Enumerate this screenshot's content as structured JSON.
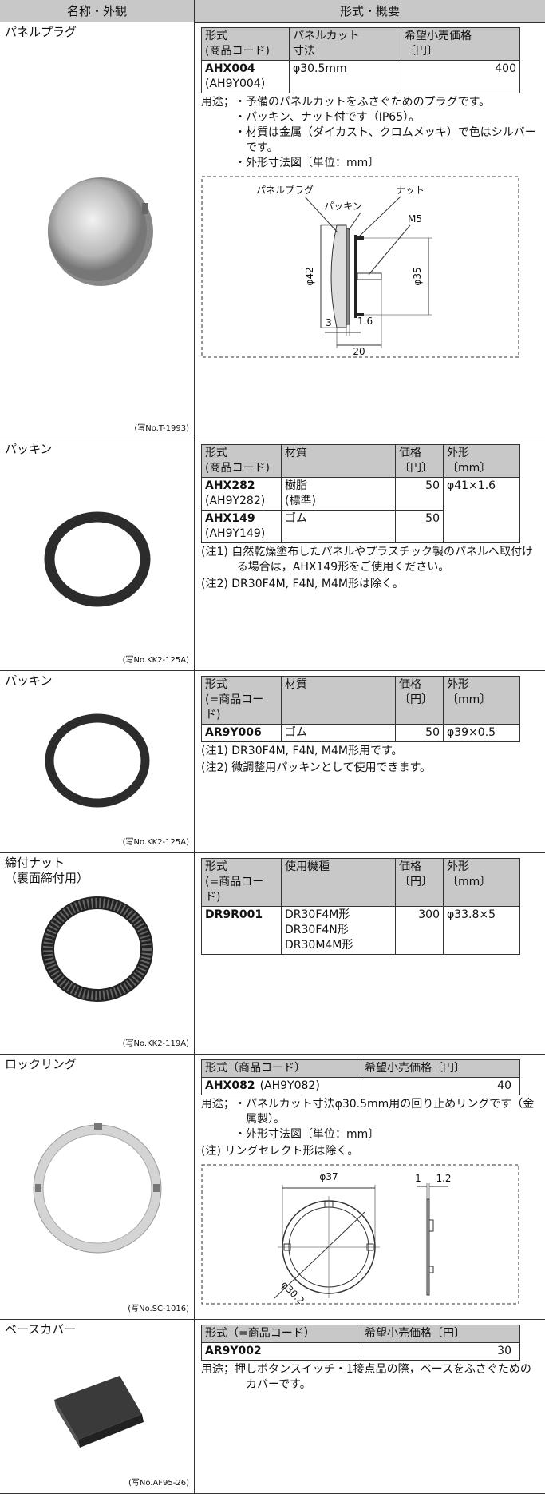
{
  "header": {
    "name_col": "名称・外観",
    "spec_col": "形式・概要"
  },
  "items": [
    {
      "name": [
        "パネルプラグ"
      ],
      "photo_code": "(写No.T-1993)",
      "table": {
        "headers": [
          [
            "形式",
            "(商品コード)"
          ],
          [
            "パネルカット",
            "寸法"
          ],
          [
            "希望小売価格",
            "〔円〕"
          ]
        ],
        "rows": [
          [
            [
              "AHX004",
              "(AH9Y004)"
            ],
            [
              "φ30.5mm"
            ],
            [
              "400"
            ]
          ]
        ]
      },
      "usage_label": "用途；",
      "usage": [
        "・予備のパネルカットをふさぐためのプラグです。",
        "・パッキン、ナット付です（IP65）。",
        "・材質は金属（ダイカスト、クロムメッキ）で色はシルバーです。",
        "・外形寸法図〔単位：mm〕"
      ],
      "diagram_labels": [
        "パネルプラグ",
        "パッキン",
        "ナット",
        "M5",
        "φ42",
        "φ35",
        "3",
        "1.6",
        "20"
      ]
    },
    {
      "name": [
        "パッキン"
      ],
      "photo_code": "(写No.KK2-125A)",
      "table": {
        "headers": [
          [
            "形式",
            "(商品コード)"
          ],
          [
            "材質"
          ],
          [
            "価格",
            "〔円〕"
          ],
          [
            "外形",
            "〔mm〕"
          ]
        ],
        "rows": [
          [
            [
              "AHX282",
              "(AH9Y282)"
            ],
            [
              "樹脂",
              "(標準)"
            ],
            [
              "50"
            ],
            [
              "φ41×1.6"
            ]
          ],
          [
            [
              "AHX149",
              "(AH9Y149)"
            ],
            [
              "ゴム"
            ],
            [
              "50"
            ]
          ]
        ]
      },
      "notes": [
        "(注1) 自然乾燥塗布したパネルやプラスチック製のパネルへ取付ける場合は，AHX149形をご使用ください。",
        "(注2) DR30F4M, F4N, M4M形は除く。"
      ]
    },
    {
      "name": [
        "パッキン"
      ],
      "photo_code": "(写No.KK2-125A)",
      "table": {
        "headers": [
          [
            "形式",
            "(=商品コード)"
          ],
          [
            "材質"
          ],
          [
            "価格",
            "〔円〕"
          ],
          [
            "外形",
            "〔mm〕"
          ]
        ],
        "rows": [
          [
            [
              "AR9Y006"
            ],
            [
              "ゴム"
            ],
            [
              "50"
            ],
            [
              "φ39×0.5"
            ]
          ]
        ]
      },
      "notes": [
        "(注1) DR30F4M, F4N, M4M形用です。",
        "(注2) 微調整用パッキンとして使用できます。"
      ]
    },
    {
      "name": [
        "締付ナット",
        "（裏面締付用）"
      ],
      "photo_code": "(写No.KK2-119A)",
      "table": {
        "headers": [
          [
            "形式",
            "(=商品コード)"
          ],
          [
            "使用機種"
          ],
          [
            "価格",
            "〔円〕"
          ],
          [
            "外形",
            "〔mm〕"
          ]
        ],
        "rows": [
          [
            [
              "DR9R001"
            ],
            [
              "DR30F4M形",
              "DR30F4N形",
              "DR30M4M形"
            ],
            [
              "300"
            ],
            [
              "φ33.8×5"
            ]
          ]
        ]
      }
    },
    {
      "name": [
        "ロックリング"
      ],
      "photo_code": "(写No.SC-1016)",
      "table": {
        "headers": [
          [
            "形式（商品コード）"
          ],
          [
            "希望小売価格〔円〕"
          ]
        ],
        "rows": [
          [
            [
              "AHX082",
              "(AH9Y082)"
            ],
            [
              "40"
            ]
          ]
        ]
      },
      "usage_label": "用途；",
      "usage": [
        "・パネルカット寸法φ30.5mm用の回り止めリングです（金属製）。",
        "・外形寸法図〔単位：mm〕"
      ],
      "notes": [
        "(注) リングセレクト形は除く。"
      ],
      "diagram_labels": [
        "φ37",
        "1",
        "1.2",
        "φ30.2"
      ]
    },
    {
      "name": [
        "ベースカバー"
      ],
      "photo_code": "(写No.AF95-26)",
      "table": {
        "headers": [
          [
            "形式（=商品コード）"
          ],
          [
            "希望小売価格〔円〕"
          ]
        ],
        "rows": [
          [
            [
              "AR9Y002"
            ],
            [
              "30"
            ]
          ]
        ]
      },
      "usage_label": "用途；",
      "usage": [
        "押しボタンスイッチ・1接点品の際，ベースをふさぐためのカバーです。"
      ]
    }
  ]
}
